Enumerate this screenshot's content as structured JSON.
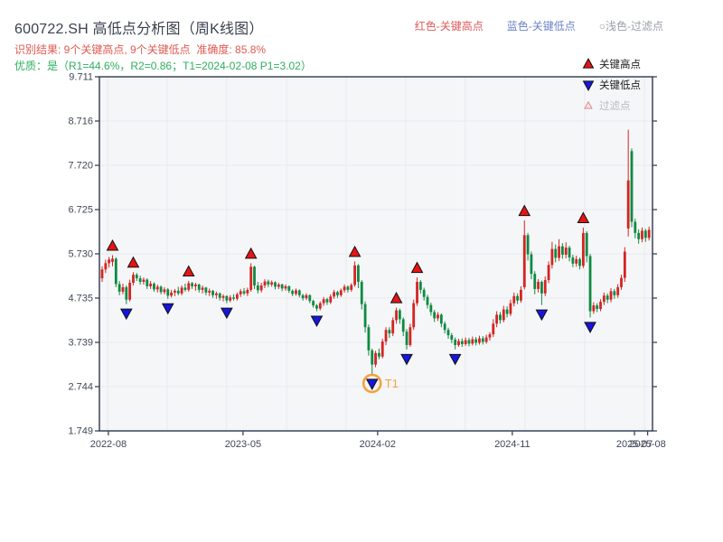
{
  "header": {
    "title": "600722.SH 高低点分析图（周K线图）",
    "title_color": "#3b414e",
    "subtitle_red": "识别结果: 9个关键高点, 9个关键低点  准确度: 85.8%",
    "subtitle_red_color": "#e05a52",
    "subtitle_green": "优质：是（R1=44.6%，R2=0.86；T1=2024-02-08 P1=3.02）",
    "subtitle_green_color": "#2fae60",
    "legend_top": [
      {
        "label": "红色-关键高点",
        "color": "#df5a5a"
      },
      {
        "label": "蓝色-关键低点",
        "color": "#6b84c8"
      },
      {
        "label": "○浅色-过滤点",
        "color": "#9aa0a8"
      }
    ]
  },
  "legend": {
    "items": [
      {
        "label": "关键高点",
        "marker": "triangle-up",
        "fill": "#e81414",
        "stroke": "#111111",
        "text_color": "#1c1c1c"
      },
      {
        "label": "关键低点",
        "marker": "triangle-down",
        "fill": "#1616dc",
        "stroke": "#111111",
        "text_color": "#1c1c1c"
      },
      {
        "label": "过滤点",
        "marker": "triangle-up-small",
        "fill": "#fbe3e3",
        "stroke": "#d98c8c",
        "text_color": "#b8bcc2"
      }
    ]
  },
  "chart_data": {
    "type": "candlestick",
    "title": "600722.SH 周K线 高低点分析",
    "ylabel": "",
    "xlabel": "",
    "ylim": [
      1.749,
      9.711
    ],
    "y_ticks": [
      "9.711",
      "8.716",
      "7.720",
      "6.725",
      "5.730",
      "4.735",
      "3.739",
      "2.744",
      "1.749"
    ],
    "x_ticks": [
      {
        "label": "2022-08",
        "index": 1.8
      },
      {
        "label": "2023-05",
        "index": 40.7
      },
      {
        "label": "2024-02",
        "index": 79.6
      },
      {
        "label": "2024-11",
        "index": 118.5
      },
      {
        "label": "2025-07",
        "index": 153.8
      },
      {
        "label": "2025-08",
        "index": 157.6
      }
    ],
    "grid_x_indices": [
      1.6,
      18.8,
      36.0,
      53.3,
      70.5,
      87.7,
      104.9,
      122.2,
      139.4,
      156.7
    ],
    "grid_on": true,
    "legend_position": "upper-right",
    "colors": {
      "up": "#d42422",
      "down": "#0e8a42",
      "key_high_fill": "#e81414",
      "key_low_fill": "#1616dc",
      "marker_stroke": "#111111",
      "grid": "#e9eaee",
      "plot_bg": "#f5f6f8",
      "axis": "#3a4458",
      "tick_label": "#3f4757",
      "t1": "#f2a33c"
    },
    "candles_format": [
      "open",
      "high",
      "low",
      "close"
    ],
    "candles": [
      [
        5.18,
        5.45,
        5.1,
        5.38
      ],
      [
        5.38,
        5.6,
        5.3,
        5.52
      ],
      [
        5.52,
        5.66,
        5.42,
        5.6
      ],
      [
        5.55,
        5.7,
        5.45,
        5.62
      ],
      [
        5.62,
        5.65,
        4.98,
        5.05
      ],
      [
        5.05,
        5.12,
        4.8,
        4.88
      ],
      [
        4.88,
        5.06,
        4.82,
        4.98
      ],
      [
        4.98,
        5.02,
        4.6,
        4.7
      ],
      [
        4.7,
        5.15,
        4.66,
        5.08
      ],
      [
        5.08,
        5.32,
        5.02,
        5.26
      ],
      [
        5.26,
        5.3,
        5.12,
        5.18
      ],
      [
        5.18,
        5.24,
        5.04,
        5.1
      ],
      [
        5.1,
        5.2,
        5.04,
        5.15
      ],
      [
        5.15,
        5.18,
        4.94,
        5.0
      ],
      [
        5.0,
        5.12,
        4.94,
        5.06
      ],
      [
        5.06,
        5.09,
        4.88,
        4.93
      ],
      [
        4.93,
        5.04,
        4.86,
        4.99
      ],
      [
        4.99,
        5.02,
        4.82,
        4.87
      ],
      [
        4.87,
        4.98,
        4.82,
        4.93
      ],
      [
        4.93,
        4.96,
        4.72,
        4.79
      ],
      [
        4.79,
        4.92,
        4.75,
        4.86
      ],
      [
        4.86,
        4.94,
        4.78,
        4.9
      ],
      [
        4.9,
        4.99,
        4.8,
        4.84
      ],
      [
        4.84,
        5.02,
        4.8,
        4.97
      ],
      [
        4.97,
        5.06,
        4.88,
        4.92
      ],
      [
        4.92,
        5.12,
        4.88,
        5.07
      ],
      [
        5.07,
        5.1,
        4.94,
        5.0
      ],
      [
        5.0,
        5.08,
        4.9,
        5.04
      ],
      [
        5.04,
        5.06,
        4.86,
        4.92
      ],
      [
        4.92,
        5.02,
        4.84,
        4.97
      ],
      [
        4.97,
        4.99,
        4.8,
        4.86
      ],
      [
        4.86,
        4.95,
        4.78,
        4.9
      ],
      [
        4.9,
        4.92,
        4.74,
        4.8
      ],
      [
        4.8,
        4.88,
        4.72,
        4.84
      ],
      [
        4.84,
        4.86,
        4.68,
        4.74
      ],
      [
        4.74,
        4.82,
        4.66,
        4.78
      ],
      [
        4.78,
        4.8,
        4.62,
        4.68
      ],
      [
        4.68,
        4.8,
        4.64,
        4.75
      ],
      [
        4.75,
        4.82,
        4.68,
        4.72
      ],
      [
        4.72,
        4.86,
        4.68,
        4.82
      ],
      [
        4.82,
        4.94,
        4.76,
        4.89
      ],
      [
        4.89,
        4.96,
        4.8,
        4.84
      ],
      [
        4.84,
        4.97,
        4.78,
        4.92
      ],
      [
        4.92,
        5.52,
        4.88,
        5.44
      ],
      [
        5.44,
        5.46,
        4.94,
        5.02
      ],
      [
        5.02,
        5.1,
        4.84,
        4.91
      ],
      [
        4.91,
        5.08,
        4.86,
        5.02
      ],
      [
        5.02,
        5.16,
        4.96,
        5.11
      ],
      [
        5.11,
        5.15,
        4.98,
        5.04
      ],
      [
        5.04,
        5.13,
        4.99,
        5.09
      ],
      [
        5.09,
        5.11,
        4.93,
        4.99
      ],
      [
        4.99,
        5.08,
        4.94,
        5.04
      ],
      [
        5.04,
        5.06,
        4.89,
        4.95
      ],
      [
        4.95,
        5.04,
        4.9,
        5.0
      ],
      [
        5.0,
        5.02,
        4.85,
        4.9
      ],
      [
        4.9,
        4.93,
        4.78,
        4.83
      ],
      [
        4.83,
        4.95,
        4.79,
        4.91
      ],
      [
        4.91,
        4.93,
        4.75,
        4.8
      ],
      [
        4.8,
        4.83,
        4.68,
        4.73
      ],
      [
        4.73,
        4.84,
        4.69,
        4.8
      ],
      [
        4.8,
        4.82,
        4.62,
        4.67
      ],
      [
        4.67,
        4.7,
        4.52,
        4.57
      ],
      [
        4.57,
        4.6,
        4.44,
        4.5
      ],
      [
        4.5,
        4.66,
        4.46,
        4.62
      ],
      [
        4.62,
        4.76,
        4.56,
        4.71
      ],
      [
        4.71,
        4.74,
        4.58,
        4.64
      ],
      [
        4.64,
        4.82,
        4.6,
        4.77
      ],
      [
        4.77,
        4.92,
        4.72,
        4.87
      ],
      [
        4.87,
        4.9,
        4.74,
        4.8
      ],
      [
        4.8,
        4.95,
        4.76,
        4.91
      ],
      [
        4.91,
        5.04,
        4.86,
        4.99
      ],
      [
        4.99,
        5.02,
        4.86,
        4.92
      ],
      [
        4.92,
        5.07,
        4.88,
        5.03
      ],
      [
        5.03,
        5.56,
        4.99,
        5.47
      ],
      [
        5.47,
        5.5,
        4.96,
        5.1
      ],
      [
        5.1,
        5.14,
        4.48,
        4.6
      ],
      [
        4.6,
        4.66,
        3.96,
        4.08
      ],
      [
        4.08,
        4.14,
        3.44,
        3.56
      ],
      [
        3.56,
        3.6,
        3.02,
        3.24
      ],
      [
        3.24,
        3.55,
        3.18,
        3.5
      ],
      [
        3.5,
        3.6,
        3.36,
        3.42
      ],
      [
        3.42,
        3.82,
        3.38,
        3.76
      ],
      [
        3.76,
        4.08,
        3.68,
        4.02
      ],
      [
        4.02,
        4.08,
        3.84,
        3.94
      ],
      [
        3.94,
        4.3,
        3.88,
        4.24
      ],
      [
        4.24,
        4.52,
        4.16,
        4.46
      ],
      [
        4.46,
        4.5,
        4.16,
        4.26
      ],
      [
        4.26,
        4.3,
        3.88,
        3.98
      ],
      [
        3.98,
        4.04,
        3.58,
        3.68
      ],
      [
        3.68,
        4.16,
        3.64,
        4.08
      ],
      [
        4.08,
        4.7,
        4.02,
        4.62
      ],
      [
        4.62,
        5.2,
        4.56,
        5.1
      ],
      [
        5.1,
        5.14,
        4.84,
        4.92
      ],
      [
        4.92,
        4.97,
        4.68,
        4.76
      ],
      [
        4.76,
        4.81,
        4.5,
        4.58
      ],
      [
        4.58,
        4.63,
        4.34,
        4.42
      ],
      [
        4.42,
        4.47,
        4.2,
        4.28
      ],
      [
        4.28,
        4.42,
        4.22,
        4.36
      ],
      [
        4.36,
        4.39,
        4.08,
        4.16
      ],
      [
        4.16,
        4.21,
        3.94,
        4.02
      ],
      [
        4.02,
        4.07,
        3.82,
        3.9
      ],
      [
        3.9,
        3.95,
        3.72,
        3.8
      ],
      [
        3.8,
        3.85,
        3.58,
        3.68
      ],
      [
        3.68,
        3.82,
        3.64,
        3.77
      ],
      [
        3.77,
        3.83,
        3.64,
        3.7
      ],
      [
        3.7,
        3.85,
        3.66,
        3.79
      ],
      [
        3.79,
        3.84,
        3.65,
        3.71
      ],
      [
        3.71,
        3.87,
        3.67,
        3.81
      ],
      [
        3.81,
        3.86,
        3.67,
        3.73
      ],
      [
        3.73,
        3.89,
        3.69,
        3.83
      ],
      [
        3.83,
        3.88,
        3.69,
        3.75
      ],
      [
        3.75,
        3.91,
        3.71,
        3.85
      ],
      [
        3.85,
        3.97,
        3.78,
        3.92
      ],
      [
        3.92,
        4.26,
        3.86,
        4.16
      ],
      [
        4.16,
        4.44,
        4.08,
        4.36
      ],
      [
        4.36,
        4.42,
        4.16,
        4.24
      ],
      [
        4.24,
        4.56,
        4.19,
        4.48
      ],
      [
        4.48,
        4.55,
        4.3,
        4.38
      ],
      [
        4.38,
        4.7,
        4.33,
        4.62
      ],
      [
        4.62,
        4.86,
        4.55,
        4.78
      ],
      [
        4.78,
        4.84,
        4.6,
        4.68
      ],
      [
        4.68,
        5.0,
        4.63,
        4.92
      ],
      [
        4.98,
        6.48,
        4.93,
        6.15
      ],
      [
        6.15,
        6.2,
        5.58,
        5.72
      ],
      [
        5.72,
        5.78,
        5.16,
        5.28
      ],
      [
        5.28,
        5.34,
        4.82,
        4.94
      ],
      [
        4.94,
        5.16,
        4.86,
        5.1
      ],
      [
        5.1,
        5.13,
        4.58,
        4.84
      ],
      [
        4.84,
        5.22,
        4.78,
        5.14
      ],
      [
        5.14,
        5.56,
        5.07,
        5.48
      ],
      [
        5.48,
        6.0,
        5.4,
        5.84
      ],
      [
        5.84,
        5.94,
        5.54,
        5.64
      ],
      [
        5.64,
        6.06,
        5.57,
        5.9
      ],
      [
        5.9,
        5.97,
        5.62,
        5.71
      ],
      [
        5.71,
        5.99,
        5.63,
        5.87
      ],
      [
        5.87,
        5.91,
        5.56,
        5.65
      ],
      [
        5.65,
        5.71,
        5.43,
        5.51
      ],
      [
        5.51,
        5.69,
        5.44,
        5.61
      ],
      [
        5.61,
        5.65,
        5.38,
        5.46
      ],
      [
        5.46,
        6.32,
        5.41,
        6.2
      ],
      [
        6.2,
        6.24,
        5.54,
        5.68
      ],
      [
        5.68,
        5.73,
        4.3,
        4.44
      ],
      [
        4.44,
        4.64,
        4.38,
        4.57
      ],
      [
        4.57,
        4.62,
        4.42,
        4.49
      ],
      [
        4.49,
        4.71,
        4.44,
        4.65
      ],
      [
        4.65,
        4.86,
        4.58,
        4.79
      ],
      [
        4.79,
        4.84,
        4.62,
        4.7
      ],
      [
        4.7,
        4.96,
        4.64,
        4.89
      ],
      [
        4.89,
        4.94,
        4.72,
        4.8
      ],
      [
        4.8,
        5.05,
        4.74,
        4.98
      ],
      [
        4.98,
        5.26,
        4.92,
        5.19
      ],
      [
        5.19,
        5.88,
        5.1,
        5.78
      ],
      [
        6.3,
        8.52,
        6.12,
        7.38
      ],
      [
        8.04,
        8.1,
        6.33,
        6.45
      ],
      [
        6.45,
        6.52,
        6.08,
        6.2
      ],
      [
        6.2,
        6.28,
        5.96,
        6.06
      ],
      [
        6.06,
        6.32,
        5.99,
        6.25
      ],
      [
        6.25,
        6.29,
        6.0,
        6.09
      ],
      [
        6.09,
        6.34,
        6.03,
        6.27
      ]
    ],
    "key_high_indices": [
      3,
      9,
      25,
      43,
      73,
      85,
      91,
      122,
      139
    ],
    "key_low_indices": [
      7,
      19,
      36,
      62,
      78,
      88,
      102,
      127,
      141
    ],
    "t1": {
      "index": 78,
      "label": "T1",
      "date": "2024-02-08",
      "price": 3.02
    }
  }
}
